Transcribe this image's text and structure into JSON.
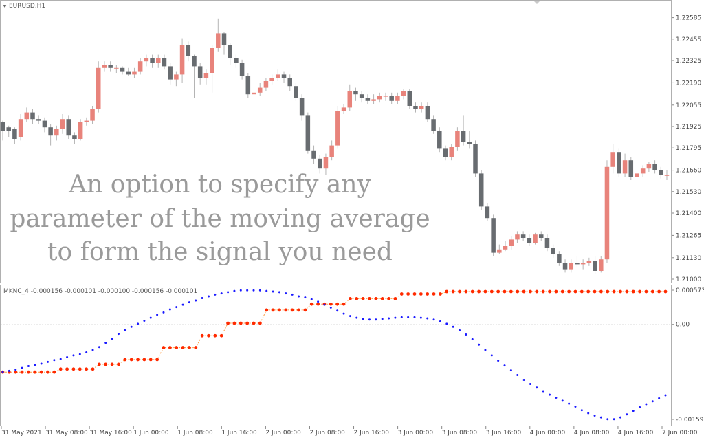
{
  "main_panel": {
    "title": "EURUSD,H1",
    "price_ticks": [
      "1.22585",
      "1.22455",
      "1.22325",
      "1.22190",
      "1.22055",
      "1.21925",
      "1.21795",
      "1.21660",
      "1.21530",
      "1.21400",
      "1.21265",
      "1.21130",
      "1.21000"
    ],
    "overlay_lines": [
      "An option to specify any",
      "parameter of the moving average",
      "to form the signal you need"
    ]
  },
  "sub_panel": {
    "title": "MKNC_4 -0.000156 -0.000101 -0.000100 -0.000156 -0.000101",
    "ticks": [
      "0.000573",
      "0.00",
      "-0.001593"
    ]
  },
  "time_axis": {
    "labels": [
      "31 May 2021",
      "31 May 08:00",
      "31 May 16:00",
      "1 Jun 00:00",
      "1 Jun 08:00",
      "1 Jun 16:00",
      "2 Jun 00:00",
      "2 Jun 08:00",
      "2 Jun 16:00",
      "3 Jun 00:00",
      "3 Jun 08:00",
      "3 Jun 16:00",
      "4 Jun 00:00",
      "4 Jun 08:00",
      "4 Jun 16:00",
      "7 Jun 00:00"
    ]
  },
  "colors": {
    "bull": "#e8837b",
    "bear": "#686c70",
    "wick": "#b4b4b4",
    "line_blue": "#1a1aff",
    "line_red": "#ff2a00",
    "line_red_connector": "#ff9a3c",
    "grid_border": "#b0b0b0"
  },
  "chart_data": [
    {
      "type": "candlestick",
      "symbol": "EURUSD",
      "timeframe": "H1",
      "ylim": [
        1.21,
        1.2265
      ],
      "candles": [
        [
          1.2195,
          1.219,
          1.2196,
          1.2184
        ],
        [
          1.2192,
          1.219,
          1.2193,
          1.2186
        ],
        [
          1.2191,
          1.2185,
          1.2192,
          1.2182
        ],
        [
          1.2186,
          1.2197,
          1.22,
          1.2184
        ],
        [
          1.2197,
          1.2201,
          1.2204,
          1.2195
        ],
        [
          1.2201,
          1.2197,
          1.2203,
          1.2194
        ],
        [
          1.2197,
          1.2196,
          1.2199,
          1.2194
        ],
        [
          1.2196,
          1.2192,
          1.2198,
          1.2189
        ],
        [
          1.2192,
          1.2187,
          1.2194,
          1.2181
        ],
        [
          1.2187,
          1.2191,
          1.2193,
          1.2184
        ],
        [
          1.2191,
          1.2197,
          1.22,
          1.2188
        ],
        [
          1.2197,
          1.2187,
          1.2199,
          1.2185
        ],
        [
          1.2187,
          1.2185,
          1.2189,
          1.2182
        ],
        [
          1.2185,
          1.2195,
          1.2197,
          1.2184
        ],
        [
          1.2195,
          1.2196,
          1.2198,
          1.2193
        ],
        [
          1.2196,
          1.2203,
          1.2205,
          1.2194
        ],
        [
          1.2203,
          1.2228,
          1.2232,
          1.2201
        ],
        [
          1.2228,
          1.223,
          1.2232,
          1.2226
        ],
        [
          1.223,
          1.2228,
          1.2232,
          1.2226
        ],
        [
          1.2228,
          1.2228,
          1.223,
          1.2225
        ],
        [
          1.2228,
          1.2226,
          1.2229,
          1.2224
        ],
        [
          1.2226,
          1.2224,
          1.2228,
          1.2223
        ],
        [
          1.2224,
          1.2226,
          1.2228,
          1.2222
        ],
        [
          1.2226,
          1.2232,
          1.2234,
          1.2224
        ],
        [
          1.2232,
          1.2234,
          1.2236,
          1.2229
        ],
        [
          1.2234,
          1.2231,
          1.2236,
          1.2228
        ],
        [
          1.2231,
          1.2234,
          1.2236,
          1.2228
        ],
        [
          1.2234,
          1.2229,
          1.2236,
          1.2227
        ],
        [
          1.2229,
          1.2221,
          1.2231,
          1.2218
        ],
        [
          1.2221,
          1.2224,
          1.2226,
          1.2217
        ],
        [
          1.2224,
          1.2242,
          1.2246,
          1.2219
        ],
        [
          1.2242,
          1.2235,
          1.2244,
          1.2232
        ],
        [
          1.2235,
          1.2229,
          1.2236,
          1.221
        ],
        [
          1.2229,
          1.2222,
          1.2231,
          1.2218
        ],
        [
          1.2222,
          1.2225,
          1.2227,
          1.2218
        ],
        [
          1.2225,
          1.224,
          1.2242,
          1.2213
        ],
        [
          1.224,
          1.2249,
          1.2258,
          1.2238
        ],
        [
          1.2249,
          1.2242,
          1.225,
          1.2236
        ],
        [
          1.2242,
          1.2234,
          1.2243,
          1.223
        ],
        [
          1.2234,
          1.2231,
          1.2236,
          1.2228
        ],
        [
          1.2231,
          1.2223,
          1.2233,
          1.2221
        ],
        [
          1.2223,
          1.2212,
          1.2225,
          1.221
        ],
        [
          1.2212,
          1.2213,
          1.2216,
          1.221
        ],
        [
          1.2213,
          1.2216,
          1.2219,
          1.2211
        ],
        [
          1.2216,
          1.222,
          1.2222,
          1.2214
        ],
        [
          1.222,
          1.2222,
          1.2224,
          1.2218
        ],
        [
          1.2222,
          1.2224,
          1.2227,
          1.222
        ],
        [
          1.2224,
          1.2222,
          1.2226,
          1.2219
        ],
        [
          1.2222,
          1.2217,
          1.2224,
          1.2214
        ],
        [
          1.2217,
          1.221,
          1.2219,
          1.2208
        ],
        [
          1.221,
          1.2199,
          1.2212,
          1.2196
        ],
        [
          1.2199,
          1.2178,
          1.2201,
          1.2176
        ],
        [
          1.2178,
          1.2173,
          1.2181,
          1.217
        ],
        [
          1.2173,
          1.2167,
          1.2175,
          1.2164
        ],
        [
          1.2167,
          1.2174,
          1.2176,
          1.2163
        ],
        [
          1.2174,
          1.2181,
          1.2184,
          1.2172
        ],
        [
          1.2181,
          1.2202,
          1.2205,
          1.2179
        ],
        [
          1.2202,
          1.2204,
          1.2206,
          1.22
        ],
        [
          1.2204,
          1.2214,
          1.2218,
          1.2202
        ],
        [
          1.2214,
          1.2212,
          1.2216,
          1.2208
        ],
        [
          1.2212,
          1.221,
          1.2214,
          1.2207
        ],
        [
          1.221,
          1.2208,
          1.2212,
          1.2206
        ],
        [
          1.2208,
          1.2209,
          1.2212,
          1.2206
        ],
        [
          1.2209,
          1.2211,
          1.2213,
          1.2207
        ],
        [
          1.2211,
          1.2211,
          1.2213,
          1.2208
        ],
        [
          1.2211,
          1.2208,
          1.2213,
          1.2206
        ],
        [
          1.2208,
          1.2211,
          1.2213,
          1.2206
        ],
        [
          1.2211,
          1.2214,
          1.2215,
          1.2209
        ],
        [
          1.2214,
          1.2205,
          1.2215,
          1.2203
        ],
        [
          1.2205,
          1.2203,
          1.2207,
          1.2201
        ],
        [
          1.2203,
          1.2205,
          1.2207,
          1.2201
        ],
        [
          1.2205,
          1.2197,
          1.2207,
          1.2195
        ],
        [
          1.2197,
          1.219,
          1.2199,
          1.2188
        ],
        [
          1.219,
          1.2179,
          1.2192,
          1.2177
        ],
        [
          1.2179,
          1.2174,
          1.2181,
          1.2172
        ],
        [
          1.2174,
          1.218,
          1.2182,
          1.2172
        ],
        [
          1.218,
          1.219,
          1.2192,
          1.2178
        ],
        [
          1.219,
          1.2183,
          1.2199,
          1.2181
        ],
        [
          1.2183,
          1.2182,
          1.219,
          1.2179
        ],
        [
          1.2182,
          1.2164,
          1.2184,
          1.2162
        ],
        [
          1.2164,
          1.2144,
          1.2166,
          1.2142
        ],
        [
          1.2144,
          1.2137,
          1.2146,
          1.2135
        ],
        [
          1.2137,
          1.2116,
          1.2139,
          1.2114
        ],
        [
          1.2116,
          1.2118,
          1.2121,
          1.2115
        ],
        [
          1.2118,
          1.212,
          1.2123,
          1.2117
        ],
        [
          1.212,
          1.2124,
          1.2126,
          1.2118
        ],
        [
          1.2124,
          1.2127,
          1.2129,
          1.2122
        ],
        [
          1.2127,
          1.2125,
          1.2129,
          1.2123
        ],
        [
          1.2125,
          1.2122,
          1.2127,
          1.212
        ],
        [
          1.2122,
          1.2127,
          1.2128,
          1.2121
        ],
        [
          1.2127,
          1.2125,
          1.2129,
          1.2123
        ],
        [
          1.2125,
          1.2119,
          1.2127,
          1.2117
        ],
        [
          1.2119,
          1.2115,
          1.2121,
          1.2113
        ],
        [
          1.2115,
          1.211,
          1.2117,
          1.2108
        ],
        [
          1.211,
          1.2106,
          1.2112,
          1.2104
        ],
        [
          1.2106,
          1.211,
          1.2112,
          1.2104
        ],
        [
          1.211,
          1.2109,
          1.2114,
          1.2107
        ],
        [
          1.2109,
          1.211,
          1.2112,
          1.2106
        ],
        [
          1.211,
          1.2111,
          1.2113,
          1.2108
        ],
        [
          1.2111,
          1.2105,
          1.2114,
          1.2103
        ],
        [
          1.2105,
          1.2112,
          1.2114,
          1.2104
        ],
        [
          1.2112,
          1.2168,
          1.2172,
          1.211
        ],
        [
          1.2168,
          1.2177,
          1.2182,
          1.2164
        ],
        [
          1.2177,
          1.2164,
          1.2179,
          1.2162
        ],
        [
          1.2164,
          1.2172,
          1.2176,
          1.2162
        ],
        [
          1.2172,
          1.2162,
          1.2174,
          1.216
        ],
        [
          1.2162,
          1.2164,
          1.2166,
          1.216
        ],
        [
          1.2164,
          1.2167,
          1.2169,
          1.2162
        ],
        [
          1.2167,
          1.217,
          1.2171,
          1.2165
        ],
        [
          1.217,
          1.2166,
          1.2172,
          1.2164
        ],
        [
          1.2166,
          1.2163,
          1.2168,
          1.2161
        ],
        [
          1.2163,
          1.2163,
          1.2166,
          1.216
        ]
      ]
    },
    {
      "type": "line",
      "title": "MKNC_4 -0.000156 -0.000101 -0.000100 -0.000156 -0.000101",
      "ylim": [
        -0.001593,
        0.000573
      ],
      "series": [
        {
          "values": [
            -0.0008,
            -0.00078,
            -0.00076,
            -0.00073,
            -0.0007,
            -0.00068,
            -0.00066,
            -0.00063,
            -0.0006,
            -0.00058,
            -0.00055,
            -0.00052,
            -0.0005,
            -0.00047,
            -0.00043,
            -0.00038,
            -0.00031,
            -0.00024,
            -0.00016,
            -0.0001,
            -4e-05,
            1e-05,
            6e-05,
            0.00011,
            0.00016,
            0.0002,
            0.00025,
            0.00029,
            0.00033,
            0.00037,
            0.0004,
            0.00044,
            0.00047,
            0.0005,
            0.00052,
            0.00054,
            0.00056,
            0.00057,
            0.00057,
            0.00057,
            0.00057,
            0.00056,
            0.00055,
            0.00054,
            0.00052,
            0.0005,
            0.00047,
            0.00045,
            0.00042,
            0.00038,
            0.00033,
            0.00028,
            0.00023,
            0.00018,
            0.00014,
            0.00011,
            9e-05,
            8e-05,
            8e-05,
            9e-05,
            0.0001,
            0.00011,
            0.00012,
            0.00012,
            0.00012,
            0.00011,
            0.0001,
            8e-05,
            5e-05,
            1e-05,
            -4e-05,
            -0.0001,
            -0.00017,
            -0.00025,
            -0.00034,
            -0.00043,
            -0.00052,
            -0.00061,
            -0.00069,
            -0.00077,
            -0.00085,
            -0.00093,
            -0.001,
            -0.00106,
            -0.00112,
            -0.00118,
            -0.00123,
            -0.00128,
            -0.00133,
            -0.00138,
            -0.00144,
            -0.00149,
            -0.00153,
            -0.00156,
            -0.00159,
            -0.00159,
            -0.00156,
            -0.00151,
            -0.00145,
            -0.00139,
            -0.00134,
            -0.00129,
            -0.00124,
            -0.00119
          ]
        },
        {
          "values": [
            -0.0008,
            -0.0008,
            -0.0008,
            -0.0008,
            -0.0008,
            -0.0008,
            -0.0008,
            -0.0008,
            -0.0008,
            -0.00075,
            -0.00075,
            -0.00075,
            -0.00075,
            -0.00075,
            -0.00075,
            -0.00067,
            -0.00067,
            -0.00067,
            -0.00067,
            -0.00059,
            -0.00059,
            -0.00059,
            -0.00059,
            -0.00059,
            -0.00059,
            -0.00039,
            -0.00039,
            -0.00039,
            -0.00039,
            -0.00039,
            -0.00039,
            -0.00019,
            -0.00019,
            -0.00019,
            -0.00019,
            2e-05,
            2e-05,
            2e-05,
            2e-05,
            2e-05,
            2e-05,
            0.00024,
            0.00024,
            0.00024,
            0.00024,
            0.00024,
            0.00024,
            0.00024,
            0.00034,
            0.00034,
            0.00034,
            0.00034,
            0.00034,
            0.00034,
            0.00043,
            0.00043,
            0.00043,
            0.00043,
            0.00043,
            0.00043,
            0.00043,
            0.00043,
            0.00051,
            0.00051,
            0.00051,
            0.00051,
            0.00051,
            0.00051,
            0.00051,
            0.00055,
            0.00055,
            0.00055,
            0.00055,
            0.00055,
            0.00055,
            0.00055,
            0.00055,
            0.00055,
            0.00055,
            0.00055,
            0.00055,
            0.00055,
            0.00055,
            0.00055,
            0.00055,
            0.00055,
            0.00055,
            0.00055,
            0.00055,
            0.00055,
            0.00055,
            0.00055,
            0.00055,
            0.00055,
            0.00055,
            0.00055,
            0.00055,
            0.00055,
            0.00055,
            0.00055,
            0.00055,
            0.00055,
            0.00055,
            0.00055
          ]
        }
      ]
    }
  ]
}
